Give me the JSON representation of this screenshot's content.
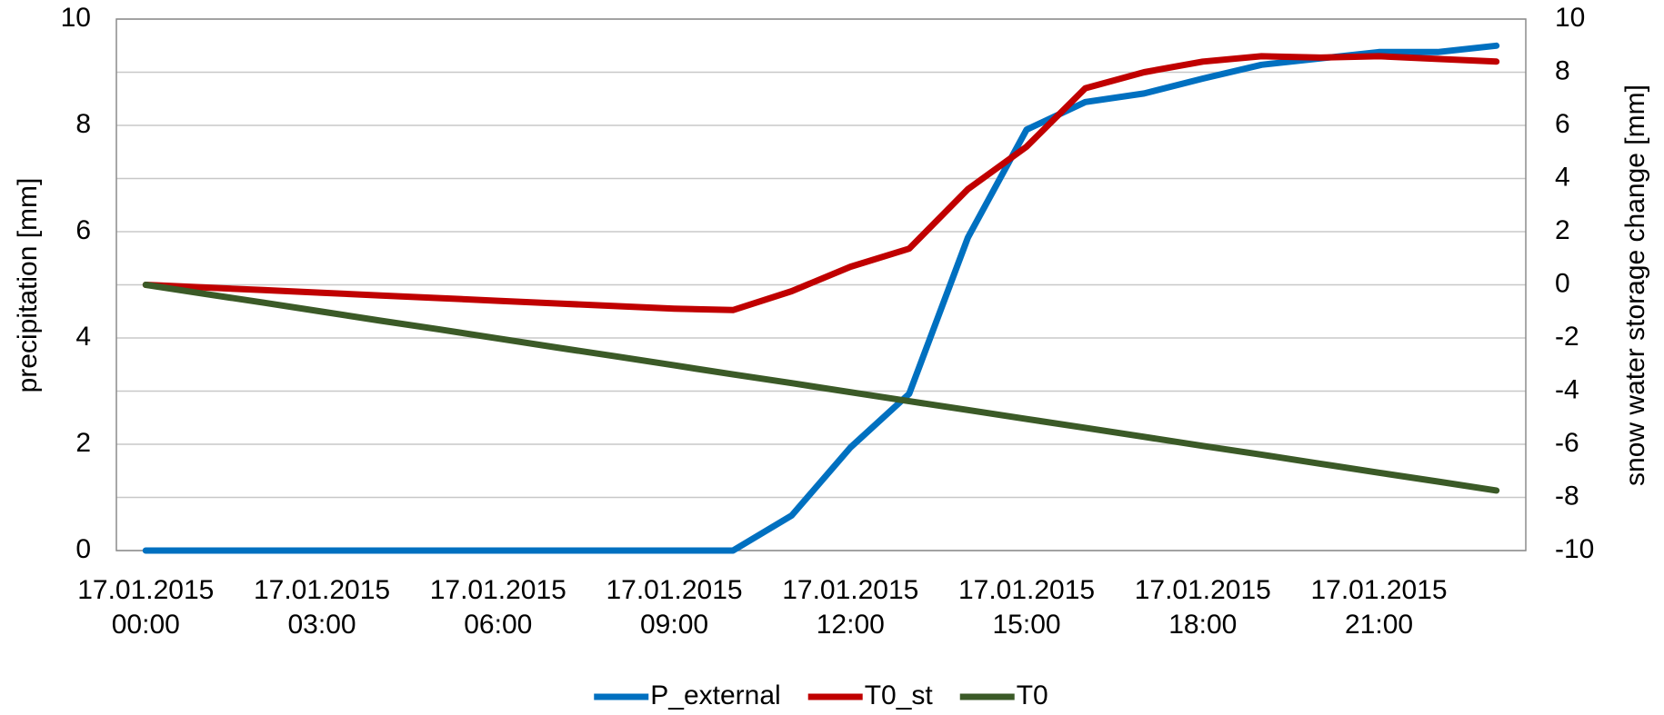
{
  "chart_data": {
    "type": "line",
    "ylabel": "precipitation [mm]",
    "y2label": "snow water storage change [mm]",
    "categories": [
      "17.01.2015 00:00",
      null,
      null,
      "17.01.2015 03:00",
      null,
      null,
      "17.01.2015 06:00",
      null,
      null,
      "17.01.2015 09:00",
      null,
      null,
      "17.01.2015 12:00",
      null,
      null,
      "17.01.2015 15:00",
      null,
      null,
      "17.01.2015 18:00",
      null,
      null,
      "17.01.2015 21:00",
      null,
      null
    ],
    "series": [
      {
        "name": "P_external",
        "color": "#0070c0",
        "axis": "y",
        "values": [
          0,
          0,
          0,
          0,
          0,
          0,
          0,
          0,
          0,
          0,
          0,
          0.66,
          1.94,
          2.95,
          5.89,
          7.92,
          8.44,
          8.6,
          8.88,
          9.14,
          9.26,
          9.38,
          9.38,
          9.5
        ]
      },
      {
        "name": "T0_st",
        "color": "#c00000",
        "axis": "y2",
        "values": [
          0,
          -0.1,
          -0.2,
          -0.3,
          -0.4,
          -0.5,
          -0.6,
          -0.7,
          -0.8,
          -0.9,
          -0.95,
          -0.24,
          0.68,
          1.36,
          3.6,
          5.2,
          7.4,
          8.0,
          8.4,
          8.6,
          8.55,
          8.6,
          8.5,
          8.4
        ]
      },
      {
        "name": "T0",
        "color": "#3b5a27",
        "axis": "y2",
        "values": [
          0,
          -0.34,
          -0.67,
          -1.01,
          -1.35,
          -1.68,
          -2.02,
          -2.36,
          -2.69,
          -3.03,
          -3.37,
          -3.7,
          -4.04,
          -4.38,
          -4.71,
          -5.05,
          -5.38,
          -5.72,
          -6.06,
          -6.39,
          -6.73,
          -7.07,
          -7.4,
          -7.74
        ]
      }
    ],
    "ylim": [
      0,
      10
    ],
    "yticks": [
      0,
      2,
      4,
      6,
      8,
      10
    ],
    "y2lim": [
      -10,
      10
    ],
    "y2ticks": [
      -10,
      -8,
      -6,
      -4,
      -2,
      0,
      2,
      4,
      6,
      8,
      10
    ],
    "grid": true,
    "legend": "bottom"
  }
}
